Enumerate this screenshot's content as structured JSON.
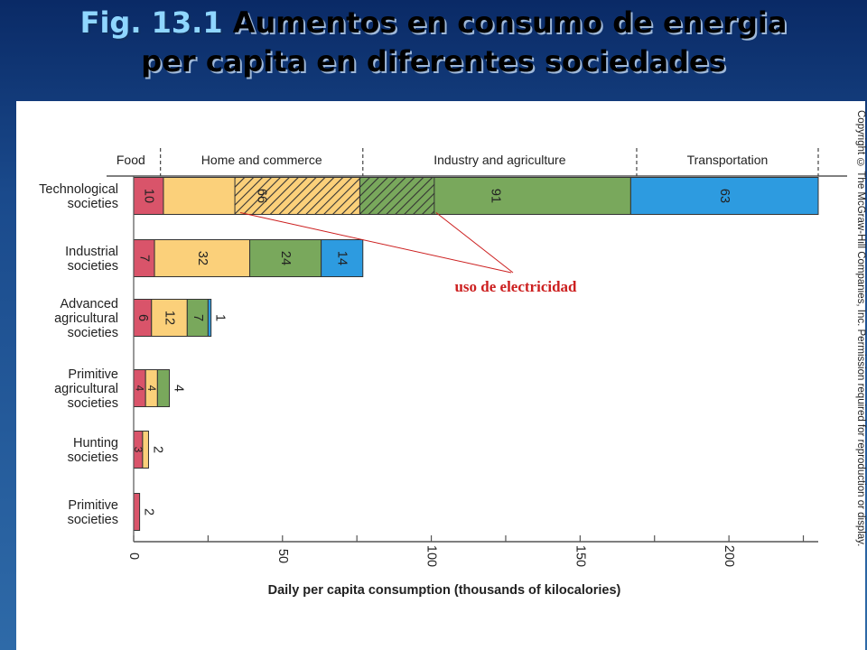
{
  "slide": {
    "title_fig": "Fig. 13.1",
    "title_rest": " Aumentos en consumo de energia",
    "title_line2": "per capita en diferentes sociedades",
    "copyright": "Copyright © The McGraw-Hill Companies, Inc. Permission required for reproduction or display.",
    "annotation": "uso de electricidad"
  },
  "colors": {
    "food": "#d9546a",
    "home": "#fbd07a",
    "industry": "#79a85c",
    "transport": "#2d9be0",
    "annotation": "#cc1f1f"
  },
  "chart_data": {
    "type": "bar",
    "orientation": "horizontal",
    "stacked": true,
    "xlabel": "Daily per capita consumption (thousands of kilocalories)",
    "ylabel": "",
    "xlim": [
      0,
      230
    ],
    "xticks": [
      0,
      50,
      100,
      150,
      200
    ],
    "categories": [
      "Technological societies",
      "Industrial societies",
      "Advanced agricultural societies",
      "Primitive agricultural societies",
      "Hunting societies",
      "Primitive societies"
    ],
    "category_label_lines": [
      [
        "Technological",
        "societies"
      ],
      [
        "Industrial",
        "societies"
      ],
      [
        "Advanced",
        "agricultural",
        "societies"
      ],
      [
        "Primitive",
        "agricultural",
        "societies"
      ],
      [
        "Hunting",
        "societies"
      ],
      [
        "Primitive",
        "societies"
      ]
    ],
    "section_headers": [
      "Food",
      "Home and commerce",
      "Industry and agriculture",
      "Transportation"
    ],
    "section_breaks": [
      9,
      77,
      169,
      230
    ],
    "series": [
      {
        "name": "Food",
        "values": [
          10,
          7,
          6,
          4,
          3,
          2
        ],
        "labels": [
          "10",
          "7",
          "6",
          "4",
          "3",
          "2"
        ]
      },
      {
        "name": "Home and commerce",
        "values": [
          66,
          32,
          12,
          4,
          2,
          0
        ],
        "labels": [
          "66",
          "32",
          "12",
          "4",
          "2",
          ""
        ]
      },
      {
        "name": "Industry and agriculture",
        "values": [
          91,
          24,
          7,
          4,
          0,
          0
        ],
        "labels": [
          "91",
          "24",
          "7",
          "4",
          "",
          ""
        ]
      },
      {
        "name": "Transportation",
        "values": [
          63,
          14,
          1,
          0,
          0,
          0
        ],
        "labels": [
          "63",
          "14",
          "1",
          "",
          "",
          ""
        ]
      }
    ],
    "electricity_use": {
      "home_and_commerce": 42,
      "industry_and_agriculture": 25
    },
    "label_placement": {
      "Advanced agricultural societies": {
        "Transportation": "outside"
      },
      "Primitive agricultural societies": {
        "Industry and agriculture": "outside"
      },
      "Hunting societies": {
        "Home and commerce": "outside"
      },
      "Primitive societies": {
        "Food": "outside"
      }
    }
  }
}
